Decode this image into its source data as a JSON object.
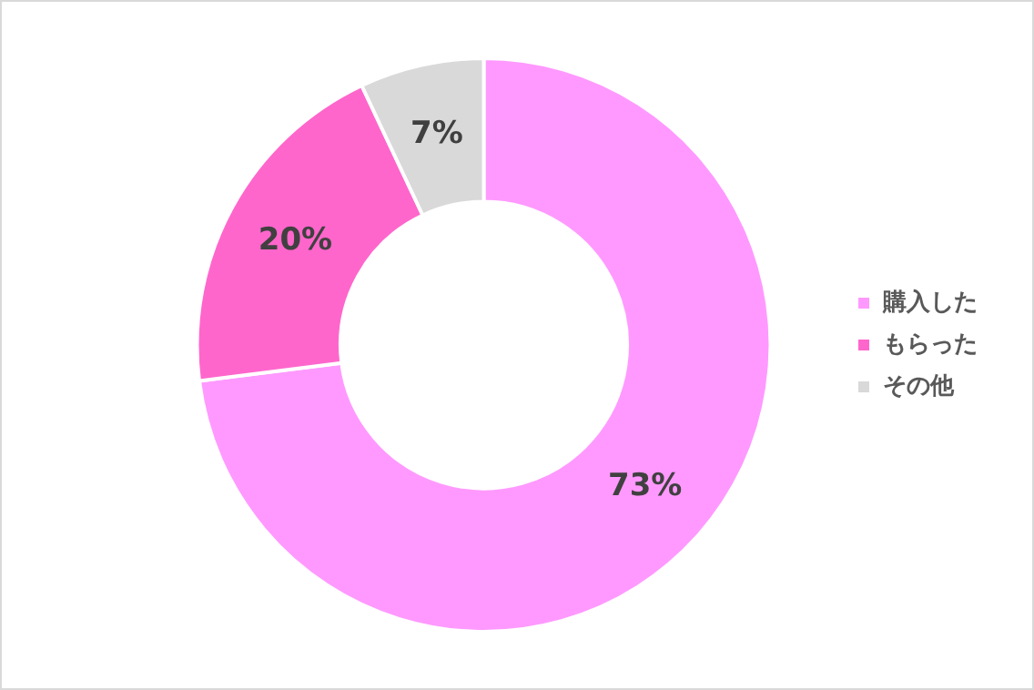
{
  "chart_data": {
    "type": "donut",
    "categories": [
      "購入した",
      "もらった",
      "その他"
    ],
    "values": [
      73,
      20,
      7
    ],
    "colors": [
      "#ff99ff",
      "#ff66cc",
      "#d9d9d9"
    ],
    "value_labels": [
      "73%",
      "20%",
      "7%"
    ],
    "legend": "right"
  }
}
